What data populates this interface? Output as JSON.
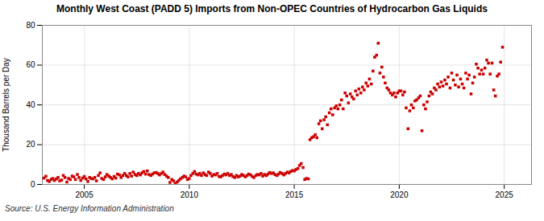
{
  "chart_data": {
    "type": "scatter",
    "title": "Monthly West Coast (PADD 5) Imports from Non-OPEC Countries of Hydrocarbon Gas Liquids",
    "ylabel": "Thousand Barrels per Day",
    "source": "Source: U.S. Energy Information Administration",
    "color": "#cc0000",
    "marker": "square",
    "grid": true,
    "xlim": [
      2003.0,
      2026.3
    ],
    "xticks": [
      2005,
      2010,
      2015,
      2020,
      2025
    ],
    "ylim": [
      0,
      80
    ],
    "yticks": [
      0,
      20,
      40,
      60,
      80
    ],
    "x": [
      2003.08,
      2003.17,
      2003.25,
      2003.33,
      2003.42,
      2003.5,
      2003.58,
      2003.67,
      2003.75,
      2003.83,
      2003.92,
      2004.0,
      2004.08,
      2004.17,
      2004.25,
      2004.33,
      2004.42,
      2004.5,
      2004.58,
      2004.67,
      2004.75,
      2004.83,
      2004.92,
      2005.0,
      2005.08,
      2005.17,
      2005.25,
      2005.33,
      2005.42,
      2005.5,
      2005.58,
      2005.67,
      2005.75,
      2005.83,
      2005.92,
      2006.0,
      2006.08,
      2006.17,
      2006.25,
      2006.33,
      2006.42,
      2006.5,
      2006.58,
      2006.67,
      2006.75,
      2006.83,
      2006.92,
      2007.0,
      2007.08,
      2007.17,
      2007.25,
      2007.33,
      2007.42,
      2007.5,
      2007.58,
      2007.67,
      2007.75,
      2007.83,
      2007.92,
      2008.0,
      2008.08,
      2008.17,
      2008.25,
      2008.33,
      2008.42,
      2008.5,
      2008.58,
      2008.67,
      2008.75,
      2008.83,
      2008.92,
      2009.0,
      2009.08,
      2009.17,
      2009.25,
      2009.33,
      2009.42,
      2009.5,
      2009.58,
      2009.67,
      2009.75,
      2009.83,
      2009.92,
      2010.0,
      2010.08,
      2010.17,
      2010.25,
      2010.33,
      2010.42,
      2010.5,
      2010.58,
      2010.67,
      2010.75,
      2010.83,
      2010.92,
      2011.0,
      2011.08,
      2011.17,
      2011.25,
      2011.33,
      2011.42,
      2011.5,
      2011.58,
      2011.67,
      2011.75,
      2011.83,
      2011.92,
      2012.0,
      2012.08,
      2012.17,
      2012.25,
      2012.33,
      2012.42,
      2012.5,
      2012.58,
      2012.67,
      2012.75,
      2012.83,
      2012.92,
      2013.0,
      2013.08,
      2013.17,
      2013.25,
      2013.33,
      2013.42,
      2013.5,
      2013.58,
      2013.67,
      2013.75,
      2013.83,
      2013.92,
      2014.0,
      2014.08,
      2014.17,
      2014.25,
      2014.33,
      2014.42,
      2014.5,
      2014.58,
      2014.67,
      2014.75,
      2014.83,
      2014.92,
      2015.0,
      2015.08,
      2015.17,
      2015.25,
      2015.33,
      2015.42,
      2015.5,
      2015.58,
      2015.67,
      2015.75,
      2015.83,
      2015.92,
      2016.0,
      2016.08,
      2016.17,
      2016.25,
      2016.33,
      2016.42,
      2016.5,
      2016.58,
      2016.67,
      2016.75,
      2016.83,
      2016.92,
      2017.0,
      2017.08,
      2017.17,
      2017.25,
      2017.33,
      2017.42,
      2017.5,
      2017.58,
      2017.67,
      2017.75,
      2017.83,
      2017.92,
      2018.0,
      2018.08,
      2018.17,
      2018.25,
      2018.33,
      2018.42,
      2018.5,
      2018.58,
      2018.67,
      2018.75,
      2018.83,
      2018.92,
      2019.0,
      2019.08,
      2019.17,
      2019.25,
      2019.33,
      2019.42,
      2019.5,
      2019.58,
      2019.67,
      2019.75,
      2019.83,
      2019.92,
      2020.0,
      2020.08,
      2020.17,
      2020.25,
      2020.33,
      2020.42,
      2020.5,
      2020.58,
      2020.67,
      2020.75,
      2020.83,
      2020.92,
      2021.0,
      2021.08,
      2021.17,
      2021.25,
      2021.33,
      2021.42,
      2021.5,
      2021.58,
      2021.67,
      2021.75,
      2021.83,
      2021.92,
      2022.0,
      2022.08,
      2022.17,
      2022.25,
      2022.33,
      2022.42,
      2022.5,
      2022.58,
      2022.67,
      2022.75,
      2022.83,
      2022.92,
      2023.0,
      2023.08,
      2023.17,
      2023.25,
      2023.33,
      2023.42,
      2023.5,
      2023.58,
      2023.67,
      2023.75,
      2023.83,
      2023.92,
      2024.0,
      2024.08,
      2024.17,
      2024.25,
      2024.33,
      2024.42,
      2024.5,
      2024.58,
      2024.67,
      2024.75,
      2024.83,
      2024.92
    ],
    "values": [
      3.2,
      4.1,
      2.0,
      1.5,
      2.5,
      3.0,
      2.0,
      2.8,
      3.5,
      1.8,
      2.2,
      4.5,
      3.5,
      1.2,
      3.0,
      2.5,
      4.2,
      3.8,
      2.5,
      5.0,
      3.5,
      2.0,
      3.2,
      4.0,
      2.8,
      1.5,
      3.5,
      3.0,
      2.8,
      3.5,
      1.8,
      4.5,
      5.8,
      3.0,
      2.5,
      3.8,
      5.0,
      4.2,
      3.5,
      2.8,
      4.0,
      3.2,
      5.2,
      4.8,
      3.5,
      4.5,
      5.5,
      4.5,
      3.8,
      5.5,
      4.2,
      6.2,
      5.0,
      4.5,
      5.5,
      4.8,
      5.8,
      6.5,
      5.2,
      6.8,
      5.0,
      4.5,
      5.2,
      5.8,
      6.0,
      5.5,
      4.8,
      5.5,
      6.2,
      5.0,
      4.2,
      3.5,
      1.0,
      2.5,
      1.8,
      0.5,
      1.2,
      2.0,
      2.8,
      3.5,
      4.2,
      3.8,
      2.5,
      3.0,
      4.5,
      5.5,
      6.5,
      5.2,
      4.8,
      5.5,
      4.5,
      5.8,
      5.0,
      4.5,
      6.2,
      5.5,
      4.2,
      5.0,
      4.8,
      5.5,
      4.0,
      3.8,
      4.5,
      5.2,
      4.8,
      5.5,
      4.5,
      5.0,
      4.0,
      3.5,
      4.5,
      3.8,
      4.2,
      5.0,
      4.5,
      3.8,
      4.5,
      5.2,
      4.8,
      4.0,
      3.5,
      4.5,
      5.0,
      4.8,
      5.5,
      4.2,
      5.0,
      4.5,
      5.2,
      6.0,
      5.5,
      5.8,
      5.0,
      4.5,
      5.2,
      6.0,
      5.5,
      4.8,
      5.5,
      6.2,
      5.8,
      6.5,
      7.0,
      6.8,
      7.5,
      8.0,
      9.5,
      10.5,
      8.5,
      2.5,
      3.0,
      2.8,
      22.5,
      23.5,
      24.0,
      25.0,
      23.5,
      30.5,
      32.0,
      28.0,
      32.5,
      34.0,
      30.0,
      36.0,
      38.0,
      35.0,
      38.5,
      39.5,
      38.0,
      40.0,
      42.5,
      38.0,
      46.0,
      44.5,
      41.0,
      45.5,
      44.0,
      43.0,
      47.0,
      45.0,
      48.0,
      46.0,
      49.0,
      47.5,
      51.0,
      49.5,
      53.0,
      50.5,
      57.0,
      64.0,
      65.0,
      71.0,
      56.0,
      59.0,
      54.0,
      51.0,
      48.5,
      47.5,
      46.0,
      45.0,
      46.0,
      44.0,
      46.0,
      47.0,
      47.0,
      45.0,
      46.5,
      38.5,
      28.0,
      37.0,
      40.0,
      38.5,
      42.0,
      42.5,
      43.5,
      44.5,
      27.0,
      40.0,
      38.0,
      41.5,
      44.5,
      46.5,
      45.5,
      48.5,
      47.5,
      50.5,
      49.0,
      51.5,
      49.5,
      52.5,
      50.5,
      54.0,
      48.5,
      56.0,
      52.5,
      50.0,
      55.0,
      49.0,
      53.0,
      50.5,
      48.5,
      56.0,
      53.0,
      55.0,
      45.5,
      51.0,
      54.0,
      60.5,
      58.5,
      55.5,
      57.5,
      55.5,
      58.5,
      62.5,
      61.0,
      55.5,
      61.0,
      47.5,
      44.5,
      54.5,
      55.5,
      61.5,
      69.0
    ]
  }
}
